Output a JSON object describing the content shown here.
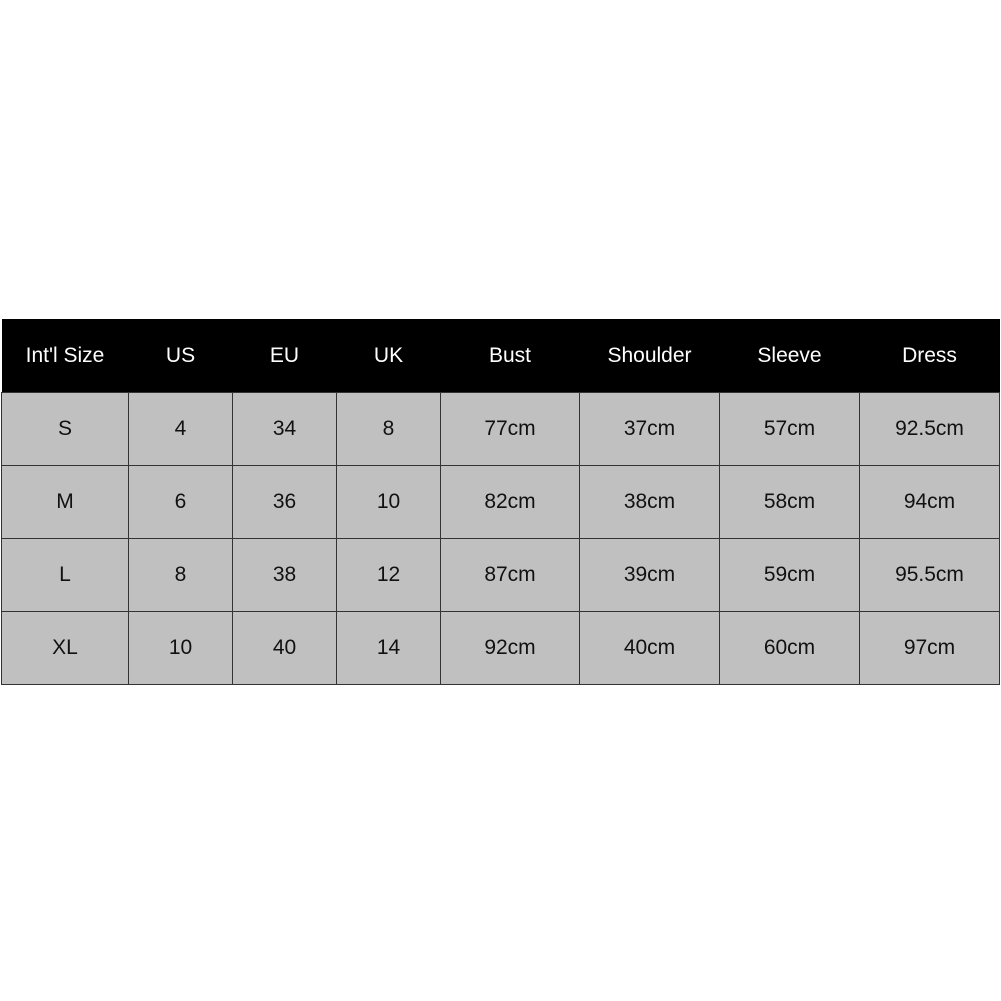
{
  "size_chart": {
    "headers": [
      "Int'l Size",
      "US",
      "EU",
      "UK",
      "Bust",
      "Shoulder",
      "Sleeve",
      "Dress"
    ],
    "rows": [
      [
        "S",
        "4",
        "34",
        "8",
        "77cm",
        "37cm",
        "57cm",
        "92.5cm"
      ],
      [
        "M",
        "6",
        "36",
        "10",
        "82cm",
        "38cm",
        "58cm",
        "94cm"
      ],
      [
        "L",
        "8",
        "38",
        "12",
        "87cm",
        "39cm",
        "59cm",
        "95.5cm"
      ],
      [
        "XL",
        "10",
        "40",
        "14",
        "92cm",
        "40cm",
        "60cm",
        "97cm"
      ]
    ],
    "colors": {
      "header_bg": "#000000",
      "header_text": "#ffffff",
      "cell_bg": "#c0c0c0",
      "border": "#333333"
    }
  }
}
